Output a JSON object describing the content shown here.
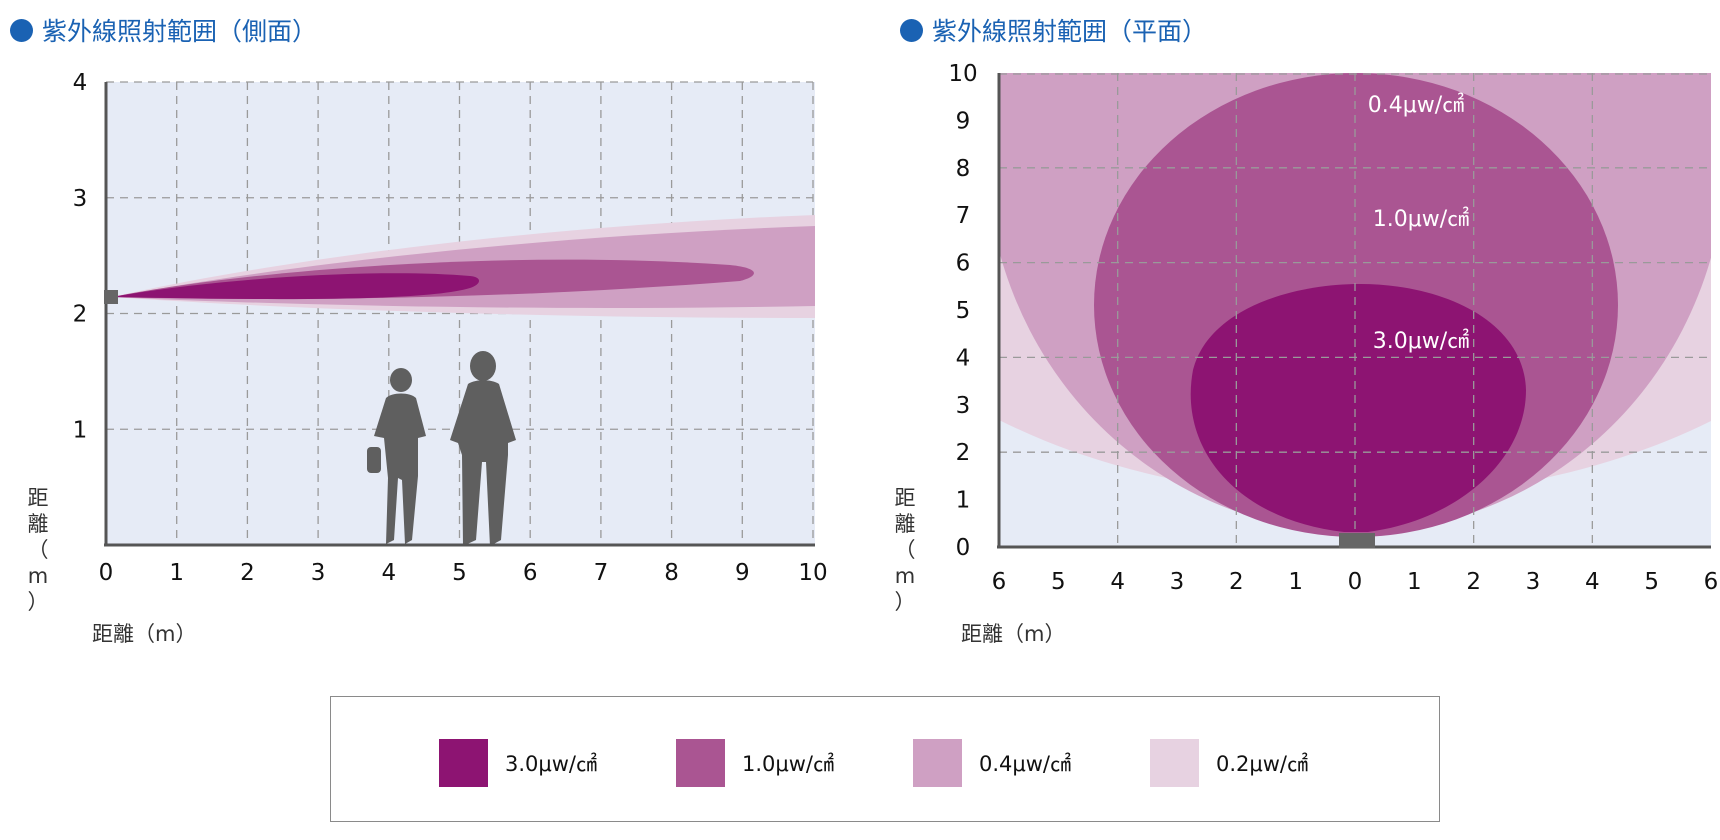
{
  "titles": {
    "side": "紫外線照射範囲（側面）",
    "plan": "紫外線照射範囲（平面）"
  },
  "colors": {
    "title_blue": "#1a62b3",
    "plot_bg": "#e6ebf6",
    "level_3_0": "#8d1472",
    "level_1_0": "#aa5592",
    "level_0_4": "#cfa0c3",
    "level_0_2": "#e7d2e1",
    "lamp": "#666666",
    "person_silhouette": "#5f5f5f"
  },
  "side_view": {
    "x_ticks": [
      "0",
      "1",
      "2",
      "3",
      "4",
      "5",
      "6",
      "7",
      "8",
      "9",
      "10"
    ],
    "y_ticks": [
      "1",
      "2",
      "3",
      "4"
    ],
    "x_label": "距離（m）",
    "y_label_chars": [
      "距",
      "離",
      "（",
      "m",
      "）"
    ],
    "x_range": [
      0,
      10
    ],
    "y_range": [
      0,
      4
    ],
    "lamp_height_m": 2.15,
    "figures": [
      "woman-silhouette",
      "man-silhouette"
    ]
  },
  "plan_view": {
    "x_ticks": [
      "6",
      "5",
      "4",
      "3",
      "2",
      "1",
      "0",
      "1",
      "2",
      "3",
      "4",
      "5",
      "6"
    ],
    "y_ticks": [
      "0",
      "1",
      "2",
      "3",
      "4",
      "5",
      "6",
      "7",
      "8",
      "9",
      "10"
    ],
    "x_label": "距離（m）",
    "y_label_chars": [
      "距",
      "離",
      "（",
      "m",
      "）"
    ],
    "x_range": [
      -6,
      6
    ],
    "y_range": [
      0,
      10
    ],
    "zone_labels": [
      "0.4μw/㎠",
      "1.0μw/㎠",
      "3.0μw/㎠"
    ]
  },
  "legend": [
    {
      "label": "3.0μw/㎠",
      "color": "#8d1472"
    },
    {
      "label": "1.0μw/㎠",
      "color": "#aa5592"
    },
    {
      "label": "0.4μw/㎠",
      "color": "#cfa0c3"
    },
    {
      "label": "0.2μw/㎠",
      "color": "#e7d2e1"
    }
  ]
}
